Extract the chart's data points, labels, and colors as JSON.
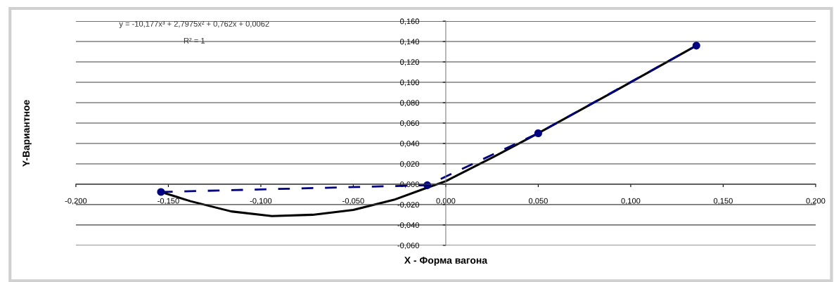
{
  "chart_data": {
    "type": "line",
    "xlabel": "X - Форма вагона",
    "ylabel": "Y-Вариантное",
    "annotations": [
      "y = -10,177x³ + 2,7975x² + 0,762x + 0,0062",
      "R² = 1"
    ],
    "xlim": [
      -0.2,
      0.2
    ],
    "xticks": [
      {
        "value": -0.2,
        "label": "-0,200"
      },
      {
        "value": -0.15,
        "label": "-0,150"
      },
      {
        "value": -0.1,
        "label": "-0,100"
      },
      {
        "value": -0.05,
        "label": "-0,050"
      },
      {
        "value": 0,
        "label": "0,000"
      },
      {
        "value": 0.05,
        "label": "0,050"
      },
      {
        "value": 0.1,
        "label": "0,100"
      },
      {
        "value": 0.15,
        "label": "0,150"
      },
      {
        "value": 0.2,
        "label": "0,200"
      }
    ],
    "ylim": [
      -0.06,
      0.16
    ],
    "yticks": [
      {
        "value": -0.06,
        "label": "-0,060"
      },
      {
        "value": -0.04,
        "label": "-0,040"
      },
      {
        "value": -0.02,
        "label": "-0,020"
      },
      {
        "value": 0,
        "label": "0,000"
      },
      {
        "value": 0.02,
        "label": "0,020"
      },
      {
        "value": 0.04,
        "label": "0,040"
      },
      {
        "value": 0.06,
        "label": "0,060"
      },
      {
        "value": 0.08,
        "label": "0,080"
      },
      {
        "value": 0.1,
        "label": "0,100"
      },
      {
        "value": 0.12,
        "label": "0,120"
      },
      {
        "value": 0.14,
        "label": "0,140"
      },
      {
        "value": 0.16,
        "label": "0,160"
      }
    ],
    "grid": "y",
    "series": [
      {
        "color": "#000000",
        "line_style": "solid",
        "marker": "none",
        "x": [
          -0.154,
          -0.138,
          -0.116,
          -0.094,
          -0.072,
          -0.05,
          -0.028,
          -0.012,
          0,
          0.026,
          0.05,
          0.091,
          0.1355
        ],
        "values": [
          -0.0076,
          -0.0167,
          -0.0267,
          -0.0313,
          -0.03,
          -0.0253,
          -0.0153,
          -0.0047,
          0.003,
          0.027,
          0.05,
          0.091,
          0.136
        ]
      },
      {
        "color": "#000080",
        "line_style": "dashed",
        "marker": "circle",
        "x": [
          -0.154,
          -0.01,
          0.05,
          0.1355
        ],
        "values": [
          -0.0076,
          -0.001,
          0.05,
          0.136
        ]
      }
    ]
  }
}
